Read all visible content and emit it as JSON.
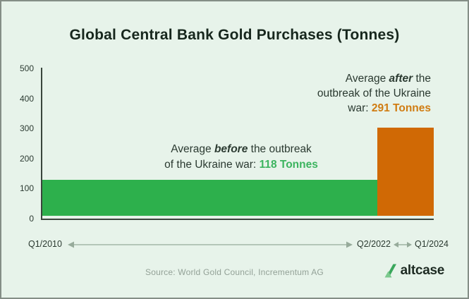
{
  "title": "Global Central Bank Gold Purchases (Tonnes)",
  "chart_data": {
    "type": "bar",
    "title": "Global Central Bank Gold Purchases (Tonnes)",
    "unit": "Tonnes",
    "ylim": [
      0,
      500
    ],
    "yticks": [
      500,
      400,
      300,
      200,
      100,
      0
    ],
    "grid": false,
    "legend_position": "none",
    "x_timeline": [
      "Q1/2010",
      "Q2/2022",
      "Q1/2024"
    ],
    "series": [
      {
        "name": "Average before the outbreak of the Ukraine war",
        "period_start": "Q1/2010",
        "period_end": "Q2/2022",
        "value": 118,
        "color": "#2db04c"
      },
      {
        "name": "Average after the outbreak of the Ukraine war",
        "period_start": "Q2/2022",
        "period_end": "Q1/2024",
        "value": 291,
        "color": "#d06905"
      }
    ]
  },
  "y_axis": {
    "ticks": [
      "500",
      "400",
      "300",
      "200",
      "100",
      "0"
    ]
  },
  "x_axis": {
    "start": "Q1/2010",
    "mid": "Q2/2022",
    "end": "Q1/2024"
  },
  "annotations": {
    "after": {
      "line1_pre": "Average ",
      "line1_em": "after",
      "line1_post": " the",
      "line2": "outbreak of the Ukraine",
      "line3_pre": "war: ",
      "value": "291 Tonnes"
    },
    "before": {
      "line1_pre": "Average ",
      "line1_em": "before",
      "line1_post": " the outbreak",
      "line2_pre": "of the Ukraine war: ",
      "value": "118 Tonnes"
    }
  },
  "source": "Source: World Gold Council, Incrementum AG",
  "logo": {
    "text": "altcase"
  },
  "colors": {
    "background": "#e7f3ea",
    "bar_before": "#2db04c",
    "bar_after": "#d06905",
    "value_before_text": "#3cb45f",
    "value_after_text": "#d07c12",
    "axis": "#39453c"
  }
}
